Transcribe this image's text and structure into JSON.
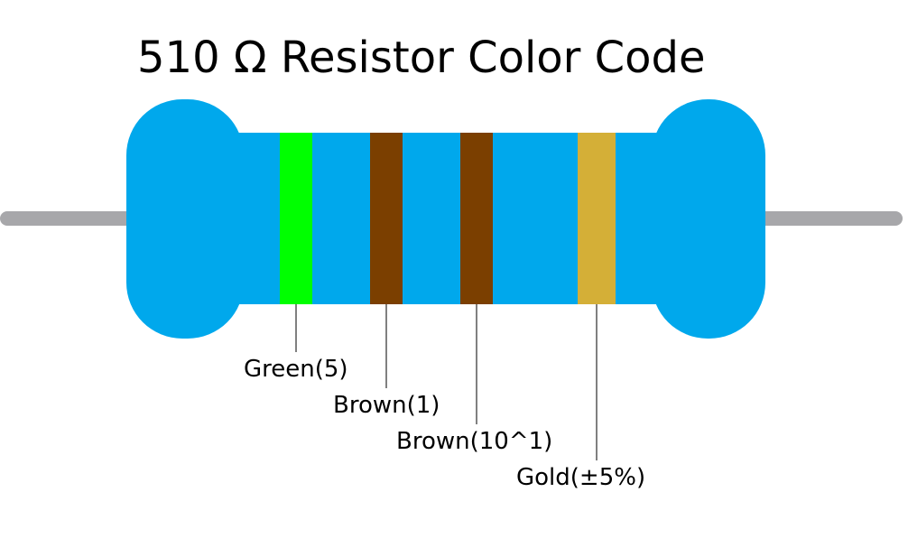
{
  "title": "510 Ω Resistor Color Code",
  "bands": [
    {
      "label": "Green(5)",
      "color": "#00ff00"
    },
    {
      "label": "Brown(1)",
      "color": "#7b3f00"
    },
    {
      "label": "Brown(10^1)",
      "color": "#7b3f00"
    },
    {
      "label": "Gold(±5%)",
      "color": "#d4af37"
    }
  ]
}
